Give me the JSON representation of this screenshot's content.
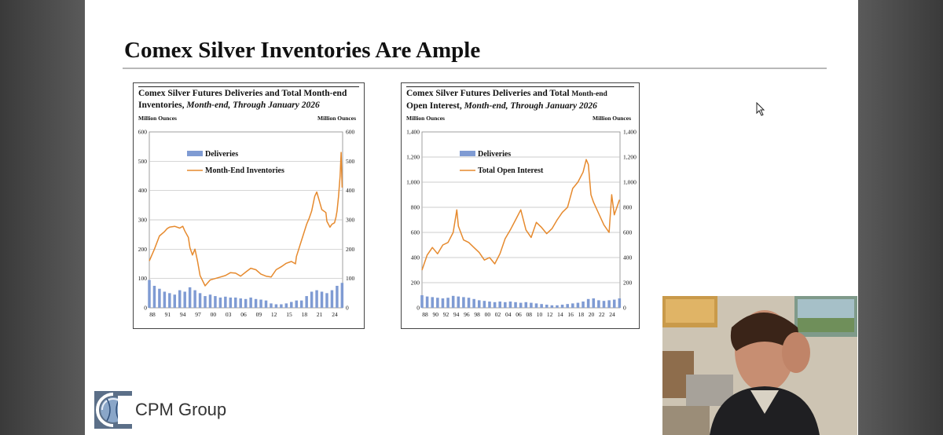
{
  "slide": {
    "title": "Comex Silver Inventories Are Ample",
    "brand": "CPM Group",
    "logo_icon": "cpm-globe-logo-icon"
  },
  "chart_data": [
    {
      "type": "bar+line",
      "title_bold": "Comex Silver Futures Deliveries and Total Month-end Inventories,",
      "title_italic": "Month-end, Through January 2026",
      "left_unit": "Million Ounces",
      "right_unit": "Million Ounces",
      "yticks": [
        "0",
        "100",
        "200",
        "300",
        "400",
        "500",
        "600"
      ],
      "ylim": [
        0,
        600
      ],
      "xlim": [
        1988,
        2026.1
      ],
      "xticks": [
        "88",
        "91",
        "94",
        "97",
        "00",
        "03",
        "06",
        "09",
        "12",
        "15",
        "18",
        "21",
        "24"
      ],
      "legend_placement": "upper-left",
      "series": [
        {
          "name": "Deliveries",
          "kind": "bar",
          "color": "#7f9bd3",
          "x": [
            1988,
            1989,
            1990,
            1991,
            1992,
            1993,
            1994,
            1995,
            1996,
            1997,
            1998,
            1999,
            2000,
            2001,
            2002,
            2003,
            2004,
            2005,
            2006,
            2007,
            2008,
            2009,
            2010,
            2011,
            2012,
            2013,
            2014,
            2015,
            2016,
            2017,
            2018,
            2019,
            2020,
            2021,
            2022,
            2023,
            2024,
            2025,
            2026
          ],
          "values": [
            95,
            75,
            65,
            55,
            50,
            45,
            60,
            55,
            70,
            60,
            50,
            40,
            45,
            40,
            35,
            38,
            35,
            35,
            32,
            30,
            35,
            30,
            28,
            25,
            15,
            12,
            12,
            15,
            20,
            25,
            25,
            40,
            55,
            60,
            55,
            50,
            60,
            75,
            85
          ]
        },
        {
          "name": "Month-End Inventories",
          "kind": "line",
          "color": "#e68a2e",
          "x": [
            1988,
            1989,
            1990,
            1991,
            1991.5,
            1992,
            1993,
            1994,
            1994.6,
            1995,
            1995.7,
            1996,
            1996.5,
            1997,
            1997.5,
            1998,
            1999,
            2000,
            2001,
            2002,
            2003,
            2004,
            2005,
            2006,
            2007,
            2008,
            2009,
            2010,
            2011,
            2012,
            2013,
            2014,
            2015,
            2016,
            2016.8,
            2017,
            2018,
            2019,
            2019.5,
            2020,
            2020.6,
            2021,
            2022,
            2022.8,
            2023,
            2023.6,
            2024,
            2024.5,
            2024.8,
            2025,
            2025.3,
            2025.6,
            2025.8,
            2026
          ],
          "values": [
            160,
            200,
            245,
            260,
            270,
            275,
            278,
            272,
            278,
            262,
            240,
            205,
            180,
            200,
            160,
            110,
            75,
            95,
            100,
            105,
            110,
            120,
            118,
            108,
            122,
            135,
            130,
            115,
            108,
            105,
            130,
            140,
            152,
            158,
            150,
            175,
            230,
            285,
            305,
            330,
            380,
            395,
            335,
            325,
            295,
            275,
            285,
            290,
            310,
            330,
            380,
            450,
            530,
            410
          ]
        }
      ]
    },
    {
      "type": "bar+line",
      "title_bold": "Comex Silver Futures Deliveries and Total",
      "title_bold_small": "Month-end",
      "title_bold_2": "Open Interest,",
      "title_italic": "Month-end, Through January 2026",
      "left_unit": "Million Ounces",
      "right_unit": "Million Ounces",
      "yticks": [
        "0",
        "200",
        "400",
        "600",
        "800",
        "1,000",
        "1,200",
        "1,400"
      ],
      "ylim": [
        0,
        1400
      ],
      "xlim": [
        1988,
        2026.1
      ],
      "xticks": [
        "88",
        "90",
        "92",
        "94",
        "96",
        "98",
        "00",
        "02",
        "04",
        "06",
        "08",
        "10",
        "12",
        "14",
        "16",
        "18",
        "20",
        "22",
        "24"
      ],
      "legend_placement": "upper-left",
      "series": [
        {
          "name": "Deliveries",
          "kind": "bar",
          "color": "#7f9bd3",
          "x": [
            1988,
            1989,
            1990,
            1991,
            1992,
            1993,
            1994,
            1995,
            1996,
            1997,
            1998,
            1999,
            2000,
            2001,
            2002,
            2003,
            2004,
            2005,
            2006,
            2007,
            2008,
            2009,
            2010,
            2011,
            2012,
            2013,
            2014,
            2015,
            2016,
            2017,
            2018,
            2019,
            2020,
            2021,
            2022,
            2023,
            2024,
            2025,
            2026
          ],
          "values": [
            100,
            90,
            85,
            80,
            75,
            80,
            95,
            90,
            85,
            80,
            70,
            60,
            55,
            50,
            45,
            50,
            45,
            50,
            45,
            40,
            45,
            40,
            35,
            30,
            25,
            20,
            20,
            25,
            30,
            35,
            40,
            50,
            70,
            75,
            60,
            55,
            60,
            65,
            75
          ]
        },
        {
          "name": "Total Open Interest",
          "kind": "line",
          "color": "#e68a2e",
          "x": [
            1988,
            1989,
            1990,
            1991,
            1992,
            1993,
            1994,
            1994.7,
            1995,
            1996,
            1997,
            1998,
            1999,
            2000,
            2001,
            2002,
            2003,
            2004,
            2005,
            2006,
            2007,
            2008,
            2009,
            2010,
            2011,
            2012,
            2013,
            2014,
            2015,
            2016,
            2017,
            2018,
            2019,
            2019.6,
            2020,
            2020.5,
            2021,
            2022,
            2023,
            2024,
            2024.5,
            2025,
            2026
          ],
          "values": [
            300,
            420,
            480,
            430,
            500,
            520,
            600,
            780,
            650,
            540,
            520,
            480,
            440,
            380,
            400,
            350,
            430,
            550,
            620,
            700,
            780,
            620,
            560,
            680,
            640,
            590,
            630,
            700,
            760,
            800,
            950,
            1000,
            1080,
            1180,
            1140,
            900,
            840,
            750,
            660,
            600,
            900,
            740,
            860
          ]
        }
      ]
    }
  ]
}
